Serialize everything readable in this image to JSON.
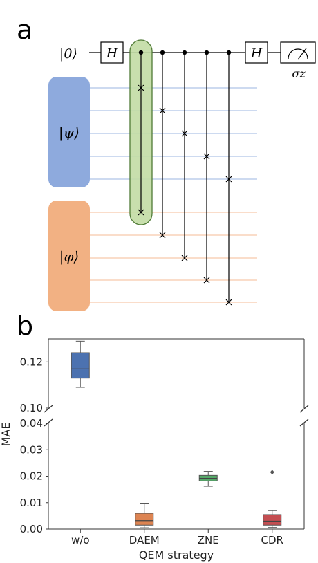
{
  "panel_a": {
    "letter": "a",
    "ancilla_label": "|0⟩",
    "hadamard_label": "H",
    "measure_label": "σz",
    "register_psi_label": "|ψ⟩",
    "register_phi_label": "|φ⟩",
    "colors": {
      "psi": "#8eaadd",
      "phi": "#f2b183",
      "psi_wire": "#9bb4e2",
      "phi_wire": "#f4bb94",
      "highlight_fill": "#c2dca4",
      "highlight_stroke": "#4f7a35"
    }
  },
  "panel_b": {
    "letter": "b"
  },
  "chart_data": {
    "type": "boxplot",
    "xlabel": "QEM strategy",
    "ylabel": "MAE",
    "categories": [
      "w/o",
      "DAEM",
      "ZNE",
      "CDR"
    ],
    "broken_axis": true,
    "upper_ylim": [
      0.1,
      0.13
    ],
    "lower_ylim": [
      0.0,
      0.04
    ],
    "upper_ticks": [
      "0.10",
      "0.12"
    ],
    "lower_ticks": [
      "0.00",
      "0.01",
      "0.02",
      "0.03",
      "0.04"
    ],
    "boxes": [
      {
        "category": "w/o",
        "whisker_low": 0.109,
        "q1": 0.113,
        "median": 0.117,
        "q3": 0.124,
        "whisker_high": 0.129,
        "color": "#4c72b0",
        "outliers": []
      },
      {
        "category": "DAEM",
        "whisker_low": 0.0005,
        "q1": 0.0015,
        "median": 0.0032,
        "q3": 0.006,
        "whisker_high": 0.0098,
        "color": "#dd8452",
        "outliers": []
      },
      {
        "category": "ZNE",
        "whisker_low": 0.0162,
        "q1": 0.0182,
        "median": 0.0192,
        "q3": 0.0203,
        "whisker_high": 0.0218,
        "color": "#55a868",
        "outliers": []
      },
      {
        "category": "CDR",
        "whisker_low": 0.0006,
        "q1": 0.0015,
        "median": 0.003,
        "q3": 0.0055,
        "whisker_high": 0.007,
        "color": "#c44e52",
        "outliers": [
          0.0215
        ]
      }
    ],
    "grid": false
  }
}
